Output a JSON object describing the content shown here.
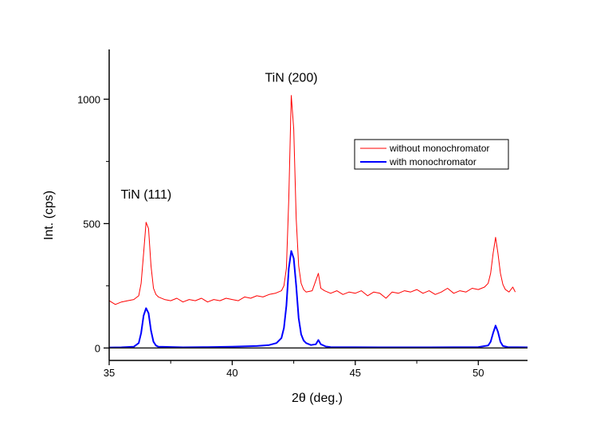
{
  "chart_data": {
    "type": "line",
    "title": "",
    "xlabel": "2θ (deg.)",
    "ylabel": "Int. (cps)",
    "xlim": [
      35,
      52
    ],
    "ylim": [
      -50,
      1200
    ],
    "xticks": [
      35,
      40,
      45,
      50
    ],
    "xtick_labels": [
      "35",
      "40",
      "45",
      "50"
    ],
    "xminor": [
      37.5,
      42.5,
      47.5
    ],
    "yticks": [
      0,
      500,
      1000
    ],
    "ytick_labels": [
      "0",
      "500",
      "1000"
    ],
    "yminor": [
      250,
      750
    ],
    "grid": false,
    "zero_line": true,
    "legend_position": "upper-right",
    "annotations": [
      {
        "text": "TiN (111)",
        "x": 36.5,
        "y": 600
      },
      {
        "text": "TiN (200)",
        "x": 42.4,
        "y": 1070
      }
    ],
    "series": [
      {
        "name": "without monochromator",
        "color": "#ff0000",
        "x": [
          35.0,
          35.25,
          35.5,
          35.75,
          36.0,
          36.2,
          36.3,
          36.4,
          36.5,
          36.6,
          36.7,
          36.8,
          36.9,
          37.0,
          37.25,
          37.5,
          37.75,
          38.0,
          38.25,
          38.5,
          38.75,
          39.0,
          39.25,
          39.5,
          39.75,
          40.0,
          40.25,
          40.5,
          40.75,
          41.0,
          41.25,
          41.5,
          41.75,
          42.0,
          42.1,
          42.2,
          42.3,
          42.4,
          42.5,
          42.6,
          42.7,
          42.8,
          42.9,
          43.0,
          43.25,
          43.5,
          43.6,
          43.75,
          44.0,
          44.25,
          44.5,
          44.75,
          45.0,
          45.25,
          45.5,
          45.75,
          46.0,
          46.25,
          46.5,
          46.75,
          47.0,
          47.25,
          47.5,
          47.75,
          48.0,
          48.25,
          48.5,
          48.75,
          49.0,
          49.25,
          49.5,
          49.75,
          50.0,
          50.25,
          50.4,
          50.5,
          50.6,
          50.7,
          50.8,
          50.9,
          51.0,
          51.1,
          51.25,
          51.4,
          51.5
        ],
        "y": [
          190,
          175,
          185,
          190,
          195,
          210,
          260,
          380,
          505,
          480,
          330,
          240,
          215,
          205,
          195,
          190,
          200,
          185,
          195,
          190,
          200,
          185,
          195,
          190,
          200,
          195,
          190,
          205,
          200,
          210,
          205,
          215,
          220,
          230,
          250,
          320,
          600,
          1015,
          880,
          520,
          330,
          260,
          235,
          225,
          230,
          300,
          240,
          230,
          220,
          230,
          215,
          225,
          220,
          230,
          210,
          225,
          220,
          200,
          225,
          220,
          230,
          225,
          235,
          220,
          230,
          215,
          225,
          240,
          220,
          230,
          225,
          240,
          235,
          245,
          260,
          300,
          380,
          445,
          380,
          300,
          255,
          235,
          225,
          245,
          225
        ]
      },
      {
        "name": "with monochromator",
        "color": "#0000ff",
        "x": [
          35.0,
          35.5,
          36.0,
          36.2,
          36.3,
          36.4,
          36.5,
          36.6,
          36.7,
          36.8,
          36.9,
          37.0,
          38.0,
          39.0,
          40.0,
          41.0,
          41.5,
          41.8,
          42.0,
          42.1,
          42.2,
          42.3,
          42.4,
          42.5,
          42.6,
          42.7,
          42.8,
          42.9,
          43.0,
          43.2,
          43.4,
          43.5,
          43.6,
          43.8,
          44.0,
          46.0,
          48.0,
          50.0,
          50.4,
          50.5,
          50.6,
          50.7,
          50.8,
          50.9,
          51.0,
          51.2,
          52.0
        ],
        "y": [
          2,
          3,
          5,
          20,
          60,
          130,
          160,
          140,
          70,
          25,
          10,
          5,
          3,
          4,
          5,
          8,
          12,
          20,
          40,
          80,
          170,
          320,
          390,
          360,
          250,
          120,
          55,
          30,
          20,
          12,
          15,
          32,
          15,
          6,
          4,
          3,
          3,
          4,
          10,
          25,
          60,
          90,
          65,
          25,
          8,
          4,
          3
        ]
      }
    ]
  }
}
